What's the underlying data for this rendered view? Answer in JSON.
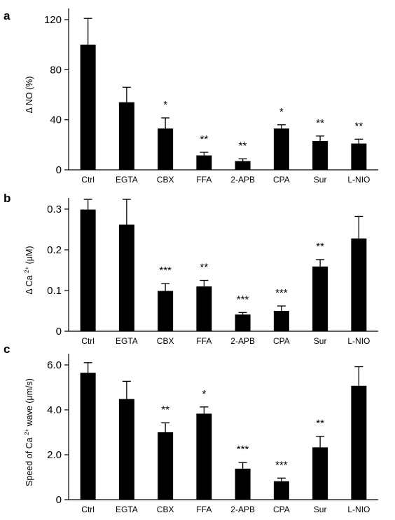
{
  "chart_data": [
    {
      "type": "bar",
      "panel": "a",
      "ylabel": "Δ NO (%)",
      "categories": [
        "Ctrl",
        "EGTA",
        "CBX",
        "FFA",
        "2-APB",
        "CPA",
        "Sur",
        "L-NIO"
      ],
      "values": [
        100,
        54,
        33,
        11.5,
        7,
        33,
        23,
        21
      ],
      "errors": [
        21,
        12,
        8.5,
        2.5,
        1.8,
        3,
        4,
        3.5
      ],
      "significance": [
        "",
        "",
        "*",
        "**",
        "**",
        "*",
        "**",
        "**"
      ],
      "yticks": [
        0,
        40,
        80,
        120
      ],
      "ytick_labels": [
        "0",
        "40",
        "80",
        "120"
      ],
      "ylim": [
        0,
        120
      ]
    },
    {
      "type": "bar",
      "panel": "b",
      "ylabel": "Δ Ca 2+ (μM)",
      "categories": [
        "Ctrl",
        "EGTA",
        "CBX",
        "FFA",
        "2-APB",
        "CPA",
        "Sur",
        "L-NIO"
      ],
      "values": [
        0.299,
        0.262,
        0.099,
        0.11,
        0.041,
        0.05,
        0.159,
        0.228
      ],
      "errors": [
        0.025,
        0.062,
        0.018,
        0.015,
        0.005,
        0.012,
        0.017,
        0.054
      ],
      "significance": [
        "",
        "",
        "***",
        "**",
        "***",
        "***",
        "**",
        ""
      ],
      "yticks": [
        0,
        0.1,
        0.2,
        0.3
      ],
      "ytick_labels": [
        "0",
        "0.1",
        "0.2",
        "0.3"
      ],
      "ylim": [
        0,
        0.3
      ]
    },
    {
      "type": "bar",
      "panel": "c",
      "ylabel": "Speed of Ca 2+ wave (μm/s)",
      "categories": [
        "Ctrl",
        "EGTA",
        "CBX",
        "FFA",
        "2-APB",
        "CPA",
        "Sur",
        "L-NIO"
      ],
      "values": [
        5.65,
        4.48,
        3.0,
        3.83,
        1.38,
        0.82,
        2.33,
        5.07
      ],
      "errors": [
        0.45,
        0.79,
        0.42,
        0.3,
        0.27,
        0.14,
        0.49,
        0.85
      ],
      "significance": [
        "",
        "",
        "**",
        "*",
        "***",
        "***",
        "**",
        ""
      ],
      "yticks": [
        0,
        2,
        4,
        6
      ],
      "ytick_labels": [
        "0",
        "2.0",
        "4.0",
        "6.0"
      ],
      "ylim": [
        0,
        6
      ]
    }
  ]
}
